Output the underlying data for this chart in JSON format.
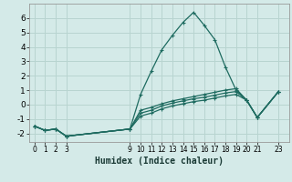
{
  "xlabel": "Humidex (Indice chaleur)",
  "bg_color": "#d4eae8",
  "grid_color": "#b8d4d0",
  "line_color": "#1e6b60",
  "ylim": [
    -2.6,
    7.0
  ],
  "xlim": [
    -0.5,
    24.0
  ],
  "xticks": [
    0,
    1,
    2,
    3,
    9,
    10,
    11,
    12,
    13,
    14,
    15,
    16,
    17,
    18,
    19,
    20,
    21,
    23
  ],
  "yticks": [
    -2,
    -1,
    0,
    1,
    2,
    3,
    4,
    5,
    6
  ],
  "lines": [
    {
      "x": [
        0,
        1,
        2,
        3,
        9,
        10,
        11,
        12,
        13,
        14,
        15,
        16,
        17,
        18,
        19,
        20,
        21,
        23
      ],
      "y": [
        -1.5,
        -1.8,
        -1.7,
        -2.2,
        -1.7,
        0.7,
        2.3,
        3.8,
        4.8,
        5.7,
        6.4,
        5.5,
        4.5,
        2.6,
        1.0,
        0.3,
        -0.9,
        0.9
      ]
    },
    {
      "x": [
        0,
        1,
        2,
        3,
        9,
        10,
        11,
        12,
        13,
        14,
        15,
        16,
        17,
        18,
        19,
        20,
        21,
        23
      ],
      "y": [
        -1.5,
        -1.8,
        -1.7,
        -2.2,
        -1.7,
        -0.4,
        -0.2,
        0.05,
        0.25,
        0.4,
        0.55,
        0.7,
        0.85,
        1.0,
        1.1,
        0.3,
        -0.9,
        0.9
      ]
    },
    {
      "x": [
        0,
        1,
        2,
        3,
        9,
        10,
        11,
        12,
        13,
        14,
        15,
        16,
        17,
        18,
        19,
        20,
        21,
        23
      ],
      "y": [
        -1.5,
        -1.8,
        -1.7,
        -2.2,
        -1.7,
        -0.6,
        -0.4,
        -0.1,
        0.1,
        0.25,
        0.4,
        0.5,
        0.65,
        0.8,
        0.9,
        0.3,
        -0.9,
        0.9
      ]
    },
    {
      "x": [
        0,
        1,
        2,
        3,
        9,
        10,
        11,
        12,
        13,
        14,
        15,
        16,
        17,
        18,
        19,
        20,
        21,
        23
      ],
      "y": [
        -1.5,
        -1.8,
        -1.7,
        -2.2,
        -1.7,
        -0.8,
        -0.6,
        -0.3,
        -0.1,
        0.05,
        0.2,
        0.3,
        0.45,
        0.6,
        0.7,
        0.3,
        -0.9,
        0.9
      ]
    }
  ]
}
